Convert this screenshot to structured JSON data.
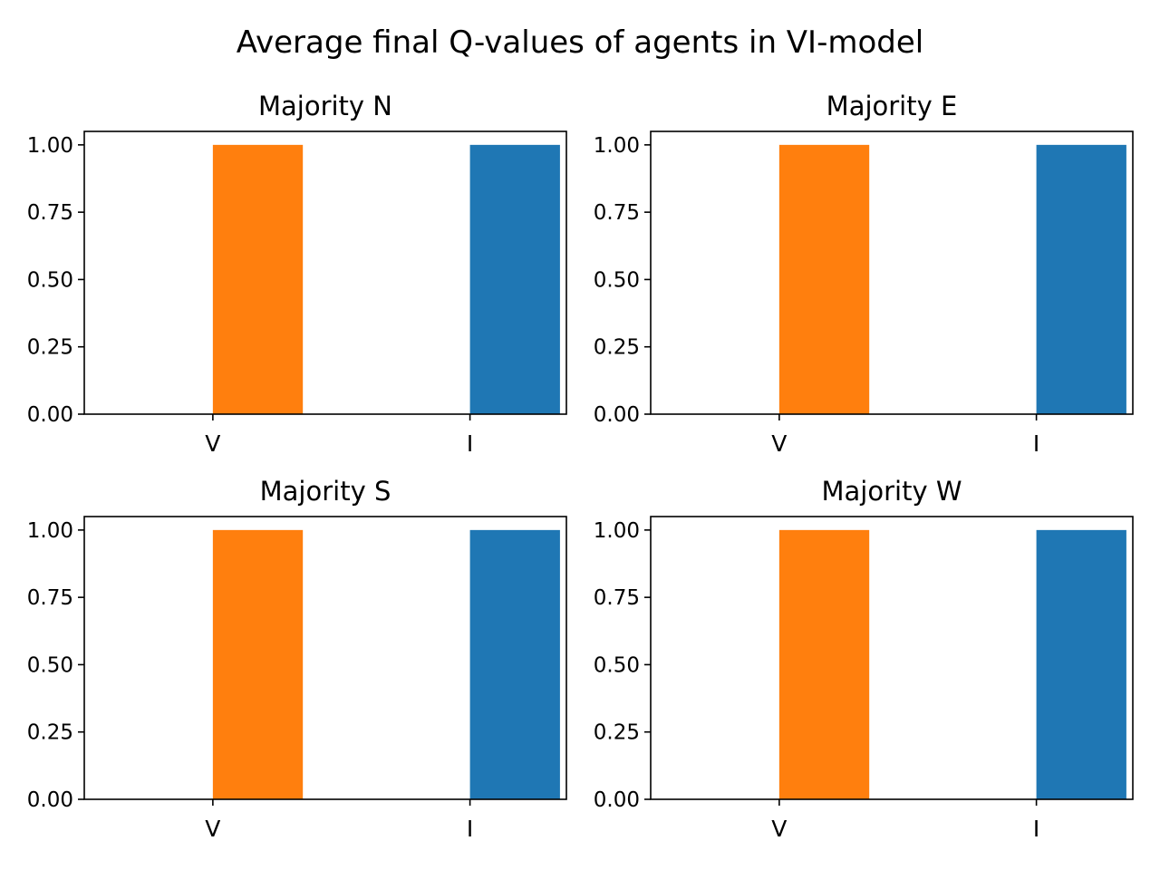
{
  "title": "Average final Q-values of agents in VI-model",
  "chart_data": [
    {
      "type": "bar",
      "title": "Majority N",
      "categories": [
        "V",
        "I"
      ],
      "values": [
        1.0,
        1.0
      ],
      "colors": [
        "#ff7f0e",
        "#1f77b4"
      ],
      "xticks": [
        "V",
        "I"
      ],
      "yticks": [
        "0.00",
        "0.25",
        "0.50",
        "0.75",
        "1.00"
      ],
      "ylim": [
        0,
        1.05
      ],
      "xlabel": "",
      "ylabel": "",
      "grid": false
    },
    {
      "type": "bar",
      "title": "Majority E",
      "categories": [
        "V",
        "I"
      ],
      "values": [
        1.0,
        1.0
      ],
      "colors": [
        "#ff7f0e",
        "#1f77b4"
      ],
      "xticks": [
        "V",
        "I"
      ],
      "yticks": [
        "0.00",
        "0.25",
        "0.50",
        "0.75",
        "1.00"
      ],
      "ylim": [
        0,
        1.05
      ],
      "xlabel": "",
      "ylabel": "",
      "grid": false
    },
    {
      "type": "bar",
      "title": "Majority S",
      "categories": [
        "V",
        "I"
      ],
      "values": [
        1.0,
        1.0
      ],
      "colors": [
        "#ff7f0e",
        "#1f77b4"
      ],
      "xticks": [
        "V",
        "I"
      ],
      "yticks": [
        "0.00",
        "0.25",
        "0.50",
        "0.75",
        "1.00"
      ],
      "ylim": [
        0,
        1.05
      ],
      "xlabel": "",
      "ylabel": "",
      "grid": false
    },
    {
      "type": "bar",
      "title": "Majority W",
      "categories": [
        "V",
        "I"
      ],
      "values": [
        1.0,
        1.0
      ],
      "colors": [
        "#ff7f0e",
        "#1f77b4"
      ],
      "xticks": [
        "V",
        "I"
      ],
      "yticks": [
        "0.00",
        "0.25",
        "0.50",
        "0.75",
        "1.00"
      ],
      "ylim": [
        0,
        1.05
      ],
      "xlabel": "",
      "ylabel": "",
      "grid": false
    }
  ]
}
